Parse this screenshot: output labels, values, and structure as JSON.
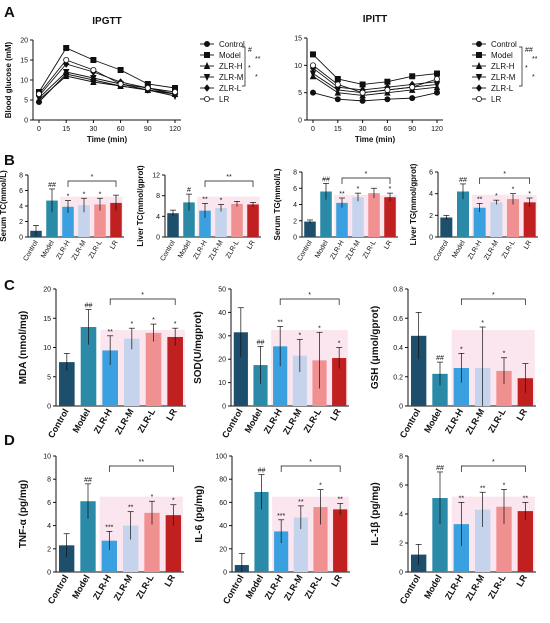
{
  "chart_data": [
    {
      "panel": "A",
      "type": "line",
      "title": "IPGTT",
      "xlabel": "Time (min)",
      "ylabel": "Blood glucose (mM)",
      "x": [
        0,
        15,
        30,
        60,
        90,
        120
      ],
      "xticks": [
        "0",
        "15",
        "30",
        "60",
        "90",
        "120"
      ],
      "ylim": [
        0,
        20
      ],
      "yticks": [
        0,
        5,
        10,
        15,
        20
      ],
      "series": [
        {
          "name": "Control",
          "marker": "circle-filled",
          "values": [
            4.5,
            11.5,
            10.0,
            8.5,
            7.5,
            6.5
          ]
        },
        {
          "name": "Model",
          "marker": "square",
          "values": [
            7.0,
            18.0,
            15.0,
            12.5,
            9.0,
            8.0
          ]
        },
        {
          "name": "ZLR-H",
          "marker": "triangle-up",
          "values": [
            5.0,
            11.0,
            9.5,
            8.5,
            7.5,
            6.5
          ]
        },
        {
          "name": "ZLR-M",
          "marker": "triangle-down",
          "values": [
            5.5,
            12.0,
            10.5,
            9.0,
            7.5,
            6.0
          ]
        },
        {
          "name": "ZLR-L",
          "marker": "diamond",
          "values": [
            6.0,
            14.0,
            12.0,
            9.5,
            8.0,
            6.5
          ]
        },
        {
          "name": "LR",
          "marker": "circle-open",
          "values": [
            6.5,
            15.0,
            12.5,
            9.0,
            8.0,
            7.0
          ]
        }
      ],
      "legend": [
        "Control",
        "Model",
        "ZLR-H",
        "ZLR-M",
        "ZLR-L",
        "LR"
      ],
      "significance": [
        "#",
        "**",
        "*",
        "*"
      ]
    },
    {
      "panel": "A",
      "type": "line",
      "title": "IPITT",
      "xlabel": "Time (min)",
      "ylabel": "",
      "x": [
        0,
        15,
        30,
        60,
        90,
        120
      ],
      "xticks": [
        "0",
        "15",
        "30",
        "60",
        "90",
        "120"
      ],
      "ylim": [
        0,
        15
      ],
      "yticks": [
        0,
        5,
        10,
        15
      ],
      "series": [
        {
          "name": "Control",
          "marker": "circle-filled",
          "values": [
            5.0,
            3.8,
            3.5,
            3.8,
            4.0,
            5.0
          ]
        },
        {
          "name": "Model",
          "marker": "square",
          "values": [
            12.0,
            7.5,
            6.5,
            7.0,
            8.0,
            8.5
          ]
        },
        {
          "name": "ZLR-H",
          "marker": "triangle-up",
          "values": [
            8.0,
            5.0,
            4.5,
            5.0,
            5.5,
            6.0
          ]
        },
        {
          "name": "ZLR-M",
          "marker": "triangle-down",
          "values": [
            8.5,
            5.5,
            5.0,
            5.5,
            6.0,
            6.5
          ]
        },
        {
          "name": "ZLR-L",
          "marker": "diamond",
          "values": [
            9.5,
            6.0,
            5.5,
            6.0,
            6.5,
            7.0
          ]
        },
        {
          "name": "LR",
          "marker": "circle-open",
          "values": [
            10.0,
            6.5,
            5.0,
            5.5,
            6.0,
            7.5
          ]
        }
      ],
      "legend": [
        "Control",
        "Model",
        "ZLR-H",
        "ZLR-M",
        "ZLR-L",
        "LR"
      ],
      "significance": [
        "##",
        "**",
        "*",
        "*"
      ]
    },
    {
      "panel": "B",
      "type": "bar",
      "ylabel": "Serum TC(mmol/L)",
      "ylim": [
        0,
        8
      ],
      "yticks": [
        0,
        2,
        4,
        6,
        8
      ],
      "categories": [
        "Control",
        "Model",
        "ZLR-H",
        "ZLR-M",
        "ZLR-L",
        "LR"
      ],
      "values": [
        0.8,
        4.7,
        3.9,
        4.1,
        4.2,
        4.4
      ],
      "errors": [
        0.7,
        1.5,
        0.8,
        0.9,
        0.8,
        1.0
      ],
      "labels": [
        "",
        "##",
        "*",
        "*",
        "*",
        ""
      ],
      "bracket": "*"
    },
    {
      "panel": "B",
      "type": "bar",
      "ylabel": "Liver TC(mmol/gprot)",
      "ylim": [
        0,
        12
      ],
      "yticks": [
        0,
        4,
        8,
        12
      ],
      "categories": [
        "Control",
        "Model",
        "ZLR-H",
        "ZLR-M",
        "ZLR-L",
        "LR"
      ],
      "values": [
        4.6,
        6.7,
        5.1,
        5.6,
        6.4,
        6.3
      ],
      "errors": [
        0.6,
        1.6,
        1.4,
        0.7,
        0.5,
        0.4
      ],
      "labels": [
        "",
        "#",
        "**",
        "*",
        "",
        ""
      ],
      "bracket": "**"
    },
    {
      "panel": "B",
      "type": "bar",
      "ylabel": "Serum TG(mmol/L)",
      "ylim": [
        0,
        8
      ],
      "yticks": [
        0,
        2,
        4,
        6,
        8
      ],
      "categories": [
        "Control",
        "Model",
        "ZLR-H",
        "ZLR-M",
        "ZLR-L",
        "LR"
      ],
      "values": [
        1.9,
        5.6,
        4.2,
        4.9,
        5.4,
        4.9
      ],
      "errors": [
        0.2,
        1.0,
        0.6,
        0.5,
        0.6,
        0.5
      ],
      "labels": [
        "",
        "##",
        "**",
        "*",
        "",
        "*"
      ],
      "bracket": "*"
    },
    {
      "panel": "B",
      "type": "bar",
      "ylabel": "Liver TG(mmol/gprot)",
      "ylim": [
        0,
        6
      ],
      "yticks": [
        0,
        2,
        4,
        6
      ],
      "categories": [
        "Control",
        "Model",
        "ZLR-H",
        "ZLR-M",
        "ZLR-L",
        "LR"
      ],
      "values": [
        1.8,
        4.2,
        2.7,
        3.2,
        3.5,
        3.2
      ],
      "errors": [
        0.2,
        0.7,
        0.4,
        0.2,
        0.5,
        0.4
      ],
      "labels": [
        "",
        "##",
        "**",
        "*",
        "*",
        "*"
      ],
      "bracket": "*"
    },
    {
      "panel": "C",
      "type": "bar",
      "ylabel": "MDA (nmol/mg)",
      "ylim": [
        0,
        20
      ],
      "yticks": [
        0,
        5,
        10,
        15,
        20
      ],
      "categories": [
        "Control",
        "Model",
        "ZLR-H",
        "ZLR-M",
        "ZLR-L",
        "LR"
      ],
      "values": [
        7.5,
        13.5,
        9.5,
        11.5,
        12.5,
        11.8
      ],
      "errors": [
        1.5,
        3.0,
        2.5,
        1.8,
        1.5,
        1.5
      ],
      "labels": [
        "",
        "##",
        "**",
        "*",
        "*",
        "*"
      ],
      "bracket": "*"
    },
    {
      "panel": "C",
      "type": "bar",
      "ylabel": "SOD(U/mgprot)",
      "ylim": [
        0,
        50
      ],
      "yticks": [
        0,
        10,
        20,
        30,
        40,
        50
      ],
      "categories": [
        "Control",
        "Model",
        "ZLR-H",
        "ZLR-M",
        "ZLR-L",
        "LR"
      ],
      "values": [
        31.5,
        17.5,
        25.5,
        21.5,
        19.5,
        20.5
      ],
      "errors": [
        10.5,
        8.0,
        8.5,
        7.0,
        12.0,
        4.5
      ],
      "labels": [
        "",
        "##",
        "**",
        "*",
        "*",
        "*"
      ],
      "bracket": "*"
    },
    {
      "panel": "C",
      "type": "bar",
      "ylabel": "GSH (μmol/gprot)",
      "ylim": [
        0,
        0.8
      ],
      "yticks": [
        0,
        0.2,
        0.4,
        0.6,
        0.8
      ],
      "categories": [
        "Control",
        "Model",
        "ZLR-H",
        "ZLR-M",
        "ZLR-L",
        "LR"
      ],
      "values": [
        0.48,
        0.22,
        0.26,
        0.26,
        0.24,
        0.19
      ],
      "errors": [
        0.16,
        0.08,
        0.1,
        0.28,
        0.09,
        0.1
      ],
      "labels": [
        "",
        "##",
        "*",
        "*",
        "*",
        ""
      ],
      "bracket": "*"
    },
    {
      "panel": "D",
      "type": "bar",
      "ylabel": "TNF-α (pg/mg)",
      "ylim": [
        0,
        10
      ],
      "yticks": [
        0,
        2,
        4,
        6,
        8,
        10
      ],
      "categories": [
        "Control",
        "Model",
        "ZLR-H",
        "ZLR-M",
        "ZLR-L",
        "LR"
      ],
      "values": [
        2.3,
        6.1,
        2.7,
        4.0,
        5.1,
        4.9
      ],
      "errors": [
        1.0,
        1.5,
        0.8,
        1.2,
        1.0,
        0.9
      ],
      "labels": [
        "",
        "##",
        "***",
        "**",
        "*",
        "*"
      ],
      "bracket": "**"
    },
    {
      "panel": "D",
      "type": "bar",
      "ylabel": "IL-6 (pg/mg)",
      "ylim": [
        0,
        100
      ],
      "yticks": [
        0,
        20,
        40,
        60,
        80,
        100
      ],
      "categories": [
        "Control",
        "Model",
        "ZLR-H",
        "ZLR-M",
        "ZLR-L",
        "LR"
      ],
      "values": [
        6,
        69,
        35,
        47,
        56,
        54
      ],
      "errors": [
        10,
        15,
        10,
        10,
        15,
        5
      ],
      "labels": [
        "",
        "##",
        "***",
        "**",
        "*",
        "**"
      ],
      "bracket": "*"
    },
    {
      "panel": "D",
      "type": "bar",
      "ylabel": "IL-1β (pg/mg)",
      "ylim": [
        0,
        8
      ],
      "yticks": [
        0,
        2,
        4,
        6,
        8
      ],
      "categories": [
        "Control",
        "Model",
        "ZLR-H",
        "ZLR-M",
        "ZLR-L",
        "LR"
      ],
      "values": [
        1.2,
        5.1,
        3.3,
        4.3,
        4.5,
        4.2
      ],
      "errors": [
        0.7,
        1.8,
        1.5,
        1.2,
        1.2,
        0.6
      ],
      "labels": [
        "",
        "##",
        "**",
        "**",
        "*",
        "**"
      ],
      "bracket": "*"
    }
  ],
  "colors": {
    "Control": "#1d4e6b",
    "Model": "#2a8aa8",
    "ZLR-H": "#3aa0e0",
    "ZLR-M": "#c5d4ec",
    "ZLR-L": "#f09090",
    "LR": "#c02020",
    "highlight": "#f6c8dc"
  },
  "panel_labels": [
    "A",
    "B",
    "C",
    "D"
  ]
}
